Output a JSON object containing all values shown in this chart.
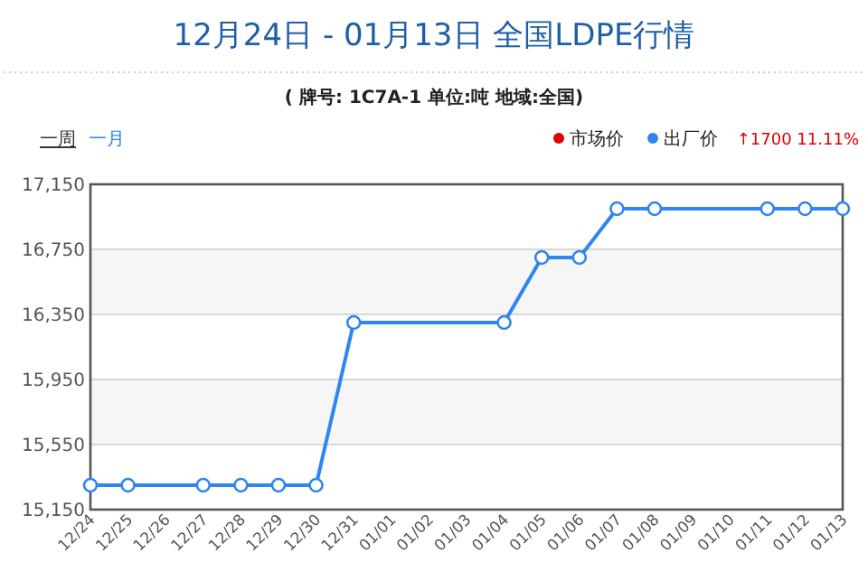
{
  "chart_data": {
    "type": "line",
    "title": "12月24日 - 01月13日 全国LDPE行情",
    "subtitle": "( 牌号: 1C7A-1 单位:吨 地域:全国)",
    "annotations": [
      "一周",
      "一月",
      "↑1700 11.11%"
    ],
    "categories": [
      "12/24",
      "12/25",
      "12/26",
      "12/27",
      "12/28",
      "12/29",
      "12/30",
      "12/31",
      "01/01",
      "01/02",
      "01/03",
      "01/04",
      "01/05",
      "01/06",
      "01/07",
      "01/08",
      "01/09",
      "01/10",
      "01/11",
      "01/12",
      "01/13"
    ],
    "series": [
      {
        "name": "市场价",
        "color": "#e00000",
        "values": [
          null,
          null,
          null,
          null,
          null,
          null,
          null,
          null,
          null,
          null,
          null,
          null,
          null,
          null,
          null,
          null,
          null,
          null,
          null,
          null,
          null
        ]
      },
      {
        "name": "出厂价",
        "color": "#2f86f0",
        "values": [
          15300,
          15300,
          null,
          15300,
          15300,
          15300,
          15300,
          16300,
          null,
          null,
          null,
          16300,
          16700,
          16700,
          17000,
          17000,
          null,
          null,
          17000,
          17000,
          17000
        ]
      }
    ],
    "ylim": [
      15150,
      17150
    ],
    "yticks": [
      {
        "value": 15150,
        "label": "15,150"
      },
      {
        "value": 15550,
        "label": "15,550"
      },
      {
        "value": 15950,
        "label": "15,950"
      },
      {
        "value": 16350,
        "label": "16,350"
      },
      {
        "value": 16750,
        "label": "16,750"
      },
      {
        "value": 17150,
        "label": "17,150"
      }
    ],
    "grid": "y",
    "legend": "top right",
    "marker": "circle",
    "line_style": "solid"
  }
}
